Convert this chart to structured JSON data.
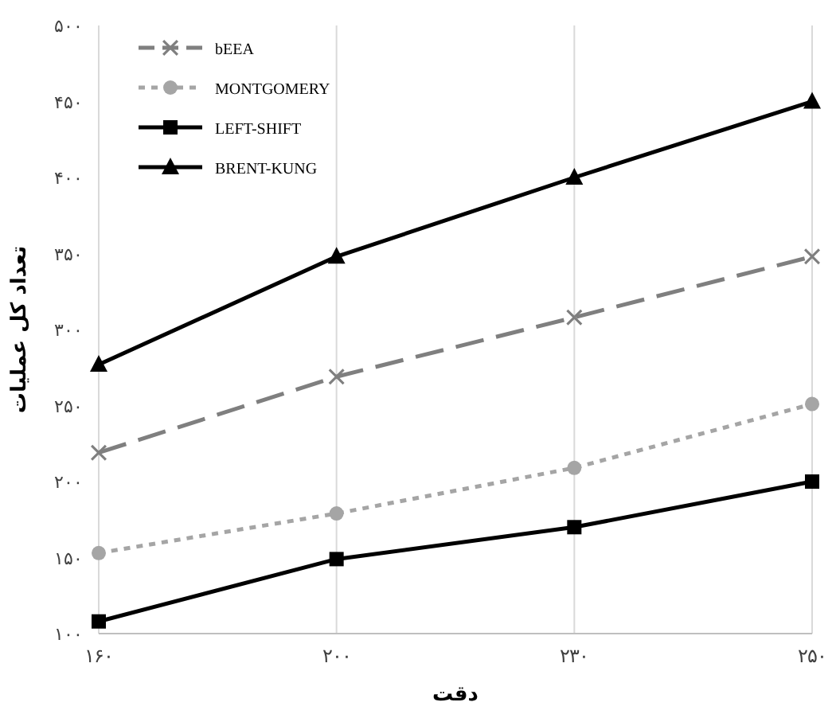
{
  "chart_data": {
    "type": "line",
    "xlabel": "دقت",
    "ylabel": "تعداد کل عملیات",
    "categories": [
      "۱۶۰",
      "۲۰۰",
      "۲۳۰",
      "۲۵۰"
    ],
    "ylim": [
      100,
      500
    ],
    "yticks": [
      {
        "value": 100,
        "label": "۱۰۰"
      },
      {
        "value": 150,
        "label": "۱۵۰"
      },
      {
        "value": 200,
        "label": "۲۰۰"
      },
      {
        "value": 250,
        "label": "۲۵۰"
      },
      {
        "value": 300,
        "label": "۳۰۰"
      },
      {
        "value": 350,
        "label": "۳۵۰"
      },
      {
        "value": 400,
        "label": "۴۰۰"
      },
      {
        "value": 450,
        "label": "۴۵۰"
      },
      {
        "value": 500,
        "label": "۵۰۰"
      }
    ],
    "grid": "x",
    "legend": "top left",
    "series": [
      {
        "name": "bEEA",
        "color": "#7f7f7f",
        "marker": "cross",
        "line_style": "dashed",
        "values": [
          219,
          269,
          308,
          348
        ]
      },
      {
        "name": "MONTGOMERY",
        "color": "#a5a5a5",
        "marker": "circle",
        "line_style": "dotted",
        "values": [
          153,
          179,
          209,
          251
        ]
      },
      {
        "name": "LEFT-SHIFT",
        "color": "#000000",
        "marker": "square",
        "line_style": "solid",
        "values": [
          108,
          149,
          170,
          200
        ]
      },
      {
        "name": "BRENT-KUNG",
        "color": "#000000",
        "marker": "triangle",
        "line_style": "solid",
        "values": [
          277,
          348,
          400,
          450
        ]
      }
    ]
  }
}
